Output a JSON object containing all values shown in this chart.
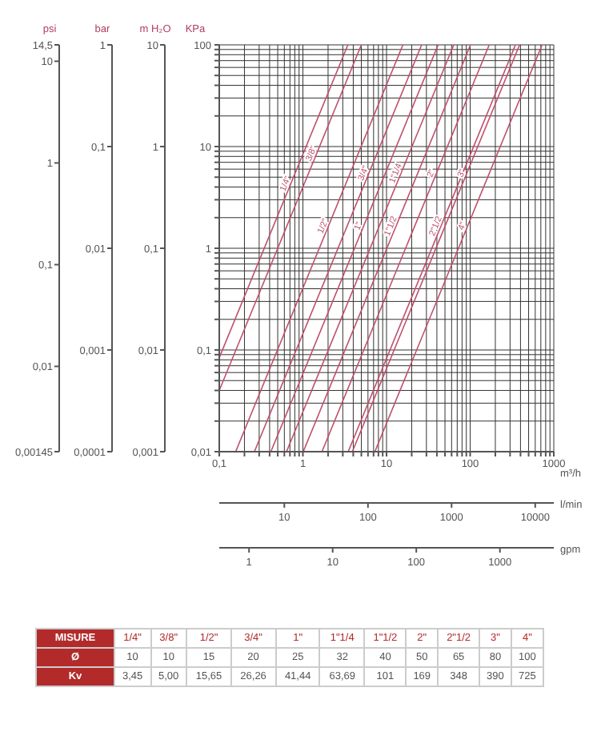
{
  "chart_data": [
    {
      "type": "line",
      "log": "xy",
      "grid": true,
      "xlabel": "m³/h",
      "ylabel": "KPa",
      "xlim": [
        0.1,
        1000
      ],
      "xticks": [
        {
          "value": 0.1,
          "label": "0,1"
        },
        {
          "value": 0.2,
          "label": null
        },
        {
          "value": 0.3,
          "label": null
        },
        {
          "value": 0.4,
          "label": null
        },
        {
          "value": 0.5,
          "label": null
        },
        {
          "value": 0.6,
          "label": null
        },
        {
          "value": 0.7,
          "label": null
        },
        {
          "value": 0.8,
          "label": null
        },
        {
          "value": 0.9,
          "label": null
        },
        1,
        {
          "value": 2,
          "label": null
        },
        {
          "value": 3,
          "label": null
        },
        {
          "value": 4,
          "label": null
        },
        {
          "value": 5,
          "label": null
        },
        {
          "value": 6,
          "label": null
        },
        {
          "value": 7,
          "label": null
        },
        {
          "value": 8,
          "label": null
        },
        {
          "value": 9,
          "label": null
        },
        10,
        {
          "value": 20,
          "label": null
        },
        {
          "value": 30,
          "label": null
        },
        {
          "value": 40,
          "label": null
        },
        {
          "value": 50,
          "label": null
        },
        {
          "value": 60,
          "label": null
        },
        {
          "value": 70,
          "label": null
        },
        {
          "value": 80,
          "label": null
        },
        {
          "value": 90,
          "label": null
        },
        100,
        {
          "value": 200,
          "label": null
        },
        {
          "value": 300,
          "label": null
        },
        {
          "value": 400,
          "label": null
        },
        {
          "value": 500,
          "label": null
        },
        {
          "value": 600,
          "label": null
        },
        {
          "value": 700,
          "label": null
        },
        {
          "value": 800,
          "label": null
        },
        {
          "value": 900,
          "label": null
        },
        1000
      ],
      "ylim": [
        0.01,
        100
      ],
      "yticks": [
        {
          "value": 0.01,
          "label": "0,01"
        },
        {
          "value": 0.02,
          "label": null
        },
        {
          "value": 0.03,
          "label": null
        },
        {
          "value": 0.04,
          "label": null
        },
        {
          "value": 0.05,
          "label": null
        },
        {
          "value": 0.06,
          "label": null
        },
        {
          "value": 0.07,
          "label": null
        },
        {
          "value": 0.08,
          "label": null
        },
        {
          "value": 0.09,
          "label": null
        },
        {
          "value": 0.1,
          "label": "0,1"
        },
        {
          "value": 0.2,
          "label": null
        },
        {
          "value": 0.3,
          "label": null
        },
        {
          "value": 0.4,
          "label": null
        },
        {
          "value": 0.5,
          "label": null
        },
        {
          "value": 0.6,
          "label": null
        },
        {
          "value": 0.7,
          "label": null
        },
        {
          "value": 0.8,
          "label": null
        },
        {
          "value": 0.9,
          "label": null
        },
        1,
        {
          "value": 2,
          "label": null
        },
        {
          "value": 3,
          "label": null
        },
        {
          "value": 4,
          "label": null
        },
        {
          "value": 5,
          "label": null
        },
        {
          "value": 6,
          "label": null
        },
        {
          "value": 7,
          "label": null
        },
        {
          "value": 8,
          "label": null
        },
        {
          "value": 9,
          "label": null
        },
        10,
        {
          "value": 20,
          "label": null
        },
        {
          "value": 30,
          "label": null
        },
        {
          "value": 40,
          "label": null
        },
        {
          "value": 50,
          "label": null
        },
        {
          "value": 60,
          "label": null
        },
        {
          "value": 70,
          "label": null
        },
        {
          "value": 80,
          "label": null
        },
        {
          "value": 90,
          "label": null
        },
        100
      ],
      "annotations": [
        "psi",
        "14,5",
        "10",
        "1",
        "0,1",
        "0,01",
        "0,00145",
        "bar",
        "1",
        "0,1",
        "0,01",
        "0,001",
        "0,0001",
        "m H₂O",
        "10",
        "1",
        "0,1",
        "0,01",
        "0,001",
        "l/min",
        "10",
        "100",
        "1000",
        "10000",
        "gpm",
        "1",
        "10",
        "100",
        "1000"
      ],
      "series": [
        {
          "name": "1/4\"",
          "color": "#c0506a",
          "x": [
            0.1,
            3.45
          ],
          "values": [
            0.084,
            100
          ]
        },
        {
          "name": "3/8\"",
          "color": "#c0506a",
          "x": [
            0.1,
            5
          ],
          "values": [
            0.04,
            100
          ]
        },
        {
          "name": "1/2\"",
          "color": "#c0506a",
          "x": [
            0.157,
            15.7
          ],
          "values": [
            0.01,
            100
          ]
        },
        {
          "name": "3/4\"",
          "color": "#c0506a",
          "x": [
            0.263,
            26.3
          ],
          "values": [
            0.01,
            100
          ]
        },
        {
          "name": "1\"",
          "color": "#c0506a",
          "x": [
            0.414,
            41.4
          ],
          "values": [
            0.01,
            100
          ]
        },
        {
          "name": "1\"1/4",
          "color": "#c0506a",
          "x": [
            0.637,
            63.7
          ],
          "values": [
            0.01,
            100
          ]
        },
        {
          "name": "1\"1/2",
          "color": "#c0506a",
          "x": [
            1.01,
            101
          ],
          "values": [
            0.01,
            100
          ]
        },
        {
          "name": "2\"",
          "color": "#c0506a",
          "x": [
            1.69,
            169
          ],
          "values": [
            0.01,
            100
          ]
        },
        {
          "name": "2\"1/2",
          "color": "#c0506a",
          "x": [
            3.48,
            348
          ],
          "values": [
            0.01,
            100
          ]
        },
        {
          "name": "3\"",
          "color": "#c0506a",
          "x": [
            3.9,
            390
          ],
          "values": [
            0.01,
            100
          ]
        },
        {
          "name": "4\"",
          "color": "#c0506a",
          "x": [
            7.25,
            725
          ],
          "values": [
            0.01,
            100
          ]
        }
      ]
    },
    {
      "type": "other",
      "title": "MISURE",
      "data_labels": true,
      "categories": [
        "1/4\"",
        "3/8\"",
        "1/2\"",
        "3/4\"",
        "1\"",
        "1\"1/4",
        "1\"1/2",
        "2\"",
        "2\"1/2",
        "3\"",
        "4\""
      ],
      "series": [
        {
          "name": "Ø",
          "values": [
            10,
            10,
            15,
            20,
            25,
            32,
            40,
            50,
            65,
            80,
            100
          ]
        },
        {
          "name": "Kv",
          "values": [
            3.45,
            5,
            15.65,
            26.26,
            41.44,
            63.69,
            101,
            169,
            348,
            390,
            725
          ],
          "value_labels": [
            "3,45",
            "5,00",
            "15,65",
            "26,26",
            "41,44",
            "63,69",
            "101",
            "169",
            "348",
            "390",
            "725"
          ]
        }
      ]
    }
  ]
}
